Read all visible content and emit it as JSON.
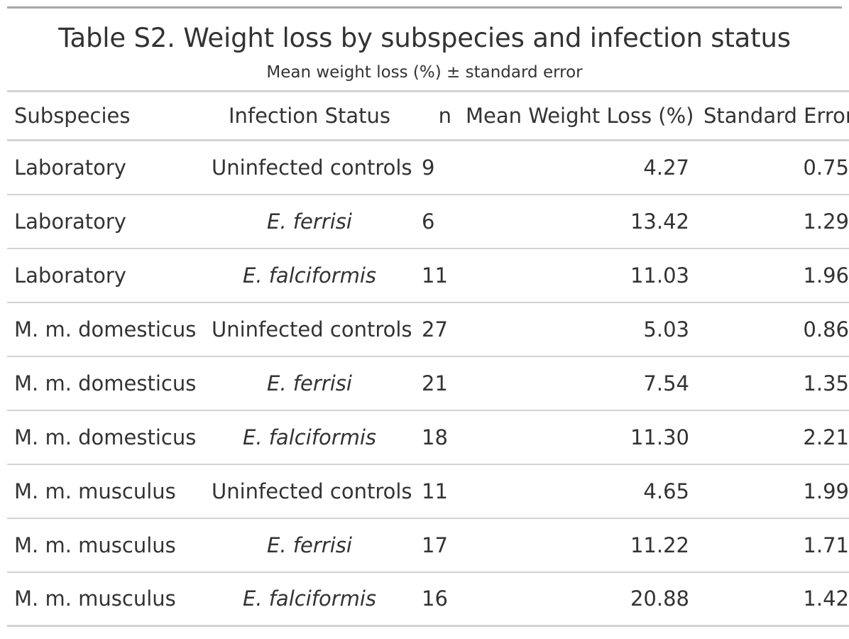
{
  "table": {
    "title": "Table S2. Weight loss by subspecies and infection status",
    "subtitle": "Mean weight loss (%) ± standard error",
    "columns": [
      "Subspecies",
      "Infection Status",
      "n",
      "Mean Weight Loss (%)",
      "Standard Error"
    ],
    "rows": [
      {
        "subspecies": "Laboratory",
        "infection": "Uninfected controls",
        "italic": false,
        "n": "9",
        "mean": "4.27",
        "se": "0.75"
      },
      {
        "subspecies": "Laboratory",
        "infection": "E. ferrisi",
        "italic": true,
        "n": "6",
        "mean": "13.42",
        "se": "1.29"
      },
      {
        "subspecies": "Laboratory",
        "infection": "E. falciformis",
        "italic": true,
        "n": "11",
        "mean": "11.03",
        "se": "1.96"
      },
      {
        "subspecies": "M. m. domesticus",
        "infection": "Uninfected controls",
        "italic": false,
        "n": "27",
        "mean": "5.03",
        "se": "0.86"
      },
      {
        "subspecies": "M. m. domesticus",
        "infection": "E. ferrisi",
        "italic": true,
        "n": "21",
        "mean": "7.54",
        "se": "1.35"
      },
      {
        "subspecies": "M. m. domesticus",
        "infection": "E. falciformis",
        "italic": true,
        "n": "18",
        "mean": "11.30",
        "se": "2.21"
      },
      {
        "subspecies": "M. m. musculus",
        "infection": "Uninfected controls",
        "italic": false,
        "n": "11",
        "mean": "4.65",
        "se": "1.99"
      },
      {
        "subspecies": "M. m. musculus",
        "infection": "E. ferrisi",
        "italic": true,
        "n": "17",
        "mean": "11.22",
        "se": "1.71"
      },
      {
        "subspecies": "M. m. musculus",
        "infection": "E. falciformis",
        "italic": true,
        "n": "16",
        "mean": "20.88",
        "se": "1.42"
      }
    ]
  }
}
